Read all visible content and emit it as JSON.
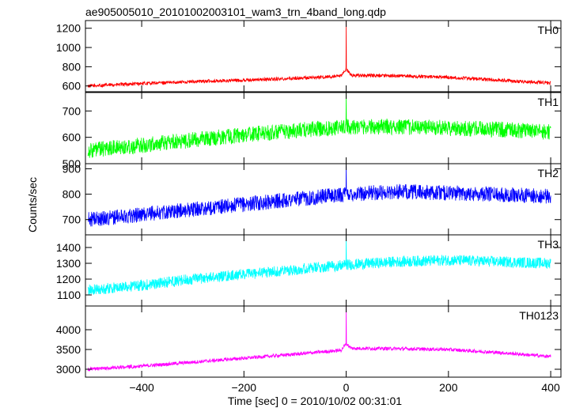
{
  "title": "ae905005010_20101002003101_wam3_trn_4band_long.qdp",
  "xlabel": "Time [sec] 0 = 2010/10/02 00:31:01",
  "ylabel": "Counts/sec",
  "chart_data": {
    "type": "line",
    "title": "ae905005010_20101002003101_wam3_trn_4band_long.qdp",
    "xlabel": "Time [sec] 0 = 2010/10/02 00:31:01",
    "ylabel": "Counts/sec",
    "xlim": [
      -510,
      420
    ],
    "xticks": [
      -400,
      -200,
      0,
      200,
      400
    ],
    "xtick_labels": [
      "−400",
      "−200",
      "0",
      "200",
      "400"
    ],
    "grid": false,
    "panels": [
      {
        "name": "TH0",
        "color": "#ff0000",
        "ylim": [
          540,
          1280
        ],
        "yticks": [
          600,
          800,
          1000,
          1200
        ],
        "ytick_labels": [
          "600",
          "800",
          "1000",
          "1200"
        ],
        "trend_x": [
          -505,
          -400,
          -300,
          -200,
          -100,
          -10,
          0,
          10,
          100,
          200,
          300,
          400
        ],
        "trend_y": [
          600,
          625,
          645,
          660,
          680,
          700,
          780,
          710,
          705,
          690,
          660,
          630
        ],
        "noise": 18,
        "spike_x": 0,
        "spike_y": 1270
      },
      {
        "name": "TH1",
        "color": "#00ff00",
        "ylim": [
          500,
          770
        ],
        "yticks": [
          500,
          600,
          700
        ],
        "ytick_labels": [
          "500",
          "600",
          "700"
        ],
        "trend_x": [
          -505,
          -400,
          -300,
          -200,
          -100,
          0,
          100,
          200,
          300,
          400
        ],
        "trend_y": [
          550,
          570,
          590,
          610,
          625,
          640,
          640,
          635,
          630,
          620
        ],
        "noise": 30,
        "spike_x": 0,
        "spike_y": 765
      },
      {
        "name": "TH2",
        "color": "#0000ff",
        "ylim": [
          640,
          920
        ],
        "yticks": [
          700,
          800,
          900
        ],
        "ytick_labels": [
          "700",
          "800",
          "900"
        ],
        "trend_x": [
          -505,
          -400,
          -300,
          -200,
          -100,
          0,
          100,
          200,
          300,
          400
        ],
        "trend_y": [
          700,
          720,
          740,
          760,
          780,
          800,
          810,
          805,
          800,
          790
        ],
        "noise": 30,
        "spike_x": 0,
        "spike_y": 915
      },
      {
        "name": "TH3",
        "color": "#00ffff",
        "ylim": [
          1030,
          1480
        ],
        "yticks": [
          1100,
          1200,
          1300,
          1400
        ],
        "ytick_labels": [
          "1100",
          "1200",
          "1300",
          "1400"
        ],
        "trend_x": [
          -505,
          -400,
          -300,
          -200,
          -100,
          0,
          100,
          200,
          300,
          400
        ],
        "trend_y": [
          1130,
          1160,
          1200,
          1230,
          1260,
          1290,
          1310,
          1320,
          1310,
          1300
        ],
        "noise": 35,
        "spike_x": 0,
        "spike_y": 1470
      },
      {
        "name": "TH0123",
        "color": "#ff00ff",
        "ylim": [
          2800,
          4600
        ],
        "yticks": [
          3000,
          3500,
          4000
        ],
        "ytick_labels": [
          "3000",
          "3500",
          "4000"
        ],
        "trend_x": [
          -505,
          -400,
          -300,
          -200,
          -100,
          -10,
          0,
          10,
          100,
          200,
          300,
          400
        ],
        "trend_y": [
          3000,
          3080,
          3180,
          3280,
          3380,
          3480,
          3650,
          3530,
          3520,
          3500,
          3420,
          3320
        ],
        "noise": 45,
        "spike_x": 0,
        "spike_y": 4600
      }
    ]
  }
}
